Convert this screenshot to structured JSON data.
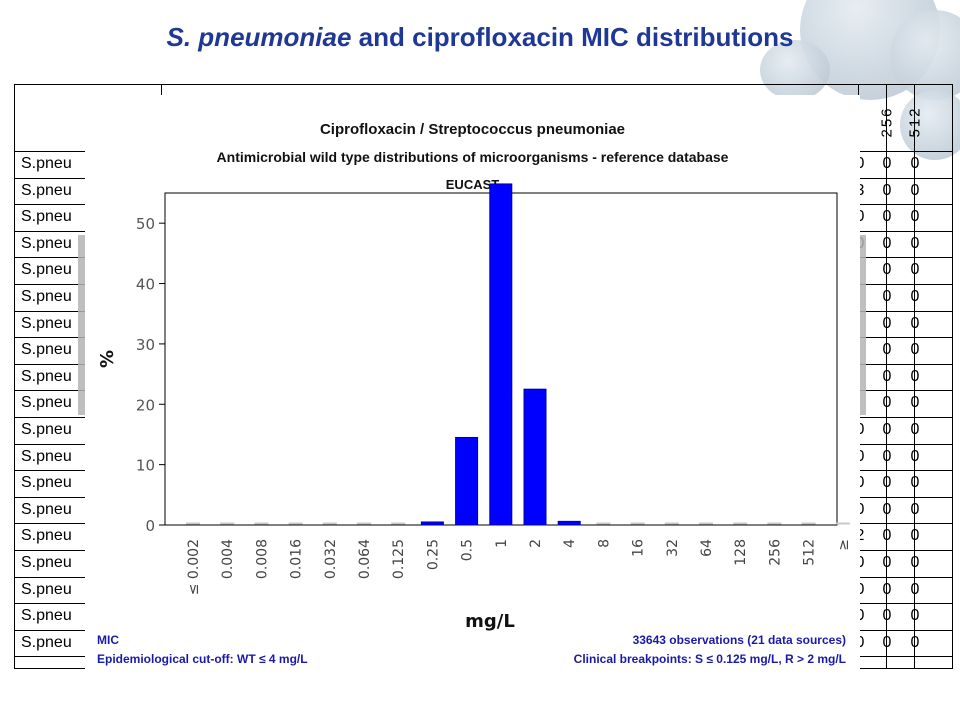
{
  "slide": {
    "title_italic": "S. pneumoniae",
    "title_rest": " and ciprofloxacin MIC distributions"
  },
  "background_table": {
    "header_cols": [
      "256",
      "512"
    ],
    "row_label": "S.pneu",
    "right_values": [
      [
        "0",
        "0",
        "0"
      ],
      [
        "3",
        "0",
        "0"
      ],
      [
        "0",
        "0",
        "0"
      ],
      [
        "0",
        "0",
        "0"
      ],
      [
        "",
        "0",
        "0"
      ],
      [
        "",
        "0",
        "0"
      ],
      [
        "",
        "0",
        "0"
      ],
      [
        "",
        "0",
        "0"
      ],
      [
        "",
        "0",
        "0"
      ],
      [
        "",
        "0",
        "0"
      ],
      [
        "0",
        "0",
        "0"
      ],
      [
        "0",
        "0",
        "0"
      ],
      [
        "0",
        "0",
        "0"
      ],
      [
        "0",
        "0",
        "0"
      ],
      [
        "2",
        "0",
        "0"
      ],
      [
        "0",
        "0",
        "0"
      ],
      [
        "0",
        "0",
        "0"
      ],
      [
        "0",
        "0",
        "0"
      ],
      [
        "0",
        "0",
        "0"
      ]
    ]
  },
  "panel": {
    "title1": "Ciprofloxacin / Streptococcus pneumoniae",
    "title2": "Antimicrobial wild type distributions of microorganisms - reference database",
    "title3": "EUCAST",
    "footer_left_1": "MIC",
    "footer_left_2": "Epidemiological cut-off: WT ≤ 4 mg/L",
    "footer_right_1": "33643 observations (21 data sources)",
    "footer_right_2": "Clinical breakpoints: S ≤ 0.125 mg/L, R > 2 mg/L"
  },
  "chart_data": {
    "type": "bar",
    "title": "Ciprofloxacin / Streptococcus pneumoniae",
    "xlabel": "mg/L",
    "ylabel": "%",
    "categories": [
      "≤ 0.002",
      "0.004",
      "0.008",
      "0.016",
      "0.032",
      "0.064",
      "0.125",
      "0.25",
      "0.5",
      "1",
      "2",
      "4",
      "8",
      "16",
      "32",
      "64",
      "128",
      "256",
      "512",
      "≥"
    ],
    "values": [
      0,
      0,
      0,
      0,
      0,
      0,
      0,
      0.5,
      14.5,
      56.5,
      22.5,
      0.6,
      0,
      0,
      0,
      0,
      0,
      0,
      0,
      0
    ],
    "ylim": [
      0,
      55
    ],
    "yticks": [
      0,
      10,
      20,
      30,
      40,
      50
    ],
    "bar_color": "#0000ff",
    "grid": false
  }
}
